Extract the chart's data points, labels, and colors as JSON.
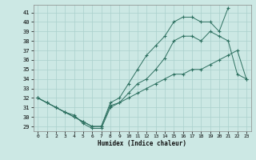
{
  "xlabel": "Humidex (Indice chaleur)",
  "bg_color": "#cce8e4",
  "line_color": "#2d7060",
  "grid_color": "#aad0cc",
  "x_ticks": [
    0,
    1,
    2,
    3,
    4,
    5,
    6,
    7,
    8,
    9,
    10,
    11,
    12,
    13,
    14,
    15,
    16,
    17,
    18,
    19,
    20,
    21,
    22,
    23
  ],
  "y_ticks": [
    29,
    30,
    31,
    32,
    33,
    34,
    35,
    36,
    37,
    38,
    39,
    40,
    41
  ],
  "ylim": [
    28.5,
    41.8
  ],
  "xlim": [
    -0.5,
    23.5
  ],
  "line1_x": [
    0,
    1,
    2,
    3,
    4,
    5,
    6,
    7,
    8,
    9,
    10,
    11,
    12,
    13,
    14,
    15,
    16,
    17,
    18,
    19,
    20,
    21,
    22,
    23
  ],
  "line1_y": [
    32.0,
    31.5,
    31.0,
    30.5,
    30.0,
    29.5,
    29.0,
    29.0,
    31.2,
    31.5,
    32.0,
    32.5,
    33.0,
    33.5,
    34.0,
    34.5,
    34.5,
    35.0,
    35.0,
    35.5,
    36.0,
    36.5,
    37.0,
    34.0
  ],
  "line2_x": [
    0,
    1,
    2,
    3,
    4,
    5,
    6,
    7,
    8,
    9,
    10,
    11,
    12,
    13,
    14,
    15,
    16,
    17,
    18,
    19,
    20,
    21,
    22,
    23
  ],
  "line2_y": [
    32.0,
    31.5,
    31.0,
    30.5,
    30.2,
    29.3,
    28.8,
    28.8,
    31.0,
    31.5,
    32.5,
    33.5,
    34.0,
    35.0,
    36.2,
    38.0,
    38.5,
    38.5,
    38.0,
    39.0,
    38.5,
    38.0,
    34.5,
    34.0
  ],
  "line3_x": [
    0,
    1,
    2,
    3,
    4,
    5,
    6,
    7,
    8,
    9,
    10,
    11,
    12,
    13,
    14,
    15,
    16,
    17,
    18,
    19,
    20,
    21
  ],
  "line3_y": [
    32.0,
    31.5,
    31.0,
    30.5,
    30.0,
    29.5,
    29.0,
    29.0,
    31.5,
    32.0,
    33.5,
    35.0,
    36.5,
    37.5,
    38.5,
    40.0,
    40.5,
    40.5,
    40.0,
    40.0,
    39.0,
    41.5
  ]
}
